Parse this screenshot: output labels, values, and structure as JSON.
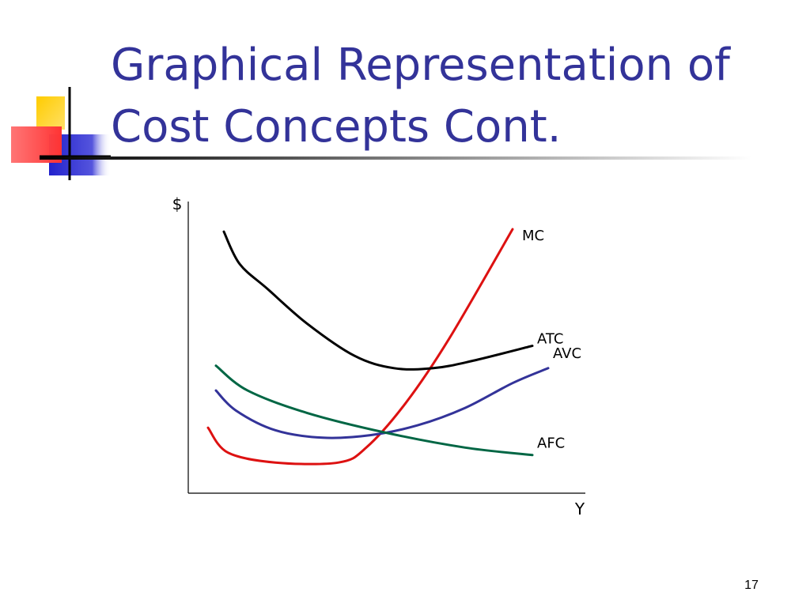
{
  "slide": {
    "title_line1": "Graphical Representation of",
    "title_line2": "Cost Concepts Cont.",
    "page_number": "17"
  },
  "logo": {
    "icon": "decorative-squares-icon",
    "colors": {
      "yellow": "#ffcc00",
      "red": "#ff3333",
      "blue": "#3333cc",
      "line": "#000000"
    }
  },
  "chart_data": {
    "type": "line",
    "xlabel": "Y",
    "ylabel": "$",
    "xlim": [
      0,
      100
    ],
    "ylim": [
      0,
      100
    ],
    "grid": false,
    "legend": "none",
    "series": [
      {
        "name": "MC",
        "color": "#dd1111",
        "points": [
          [
            5,
            20
          ],
          [
            10,
            10
          ],
          [
            22,
            6
          ],
          [
            38,
            6
          ],
          [
            45,
            12
          ],
          [
            55,
            30
          ],
          [
            66,
            56
          ],
          [
            82,
            100
          ]
        ]
      },
      {
        "name": "ATC",
        "color": "#000000",
        "points": [
          [
            9,
            99
          ],
          [
            13,
            86
          ],
          [
            20,
            76
          ],
          [
            30,
            62
          ],
          [
            42,
            49
          ],
          [
            52,
            44
          ],
          [
            62,
            44
          ],
          [
            72,
            47
          ],
          [
            87,
            53
          ]
        ]
      },
      {
        "name": "AVC",
        "color": "#333399",
        "points": [
          [
            7,
            35
          ],
          [
            12,
            27
          ],
          [
            22,
            19
          ],
          [
            34,
            16
          ],
          [
            46,
            17
          ],
          [
            58,
            21
          ],
          [
            70,
            28
          ],
          [
            82,
            38
          ],
          [
            91,
            44
          ]
        ]
      },
      {
        "name": "AFC",
        "color": "#006644",
        "points": [
          [
            7,
            45
          ],
          [
            15,
            35
          ],
          [
            30,
            26
          ],
          [
            50,
            18
          ],
          [
            70,
            12
          ],
          [
            87,
            9
          ]
        ]
      }
    ]
  }
}
